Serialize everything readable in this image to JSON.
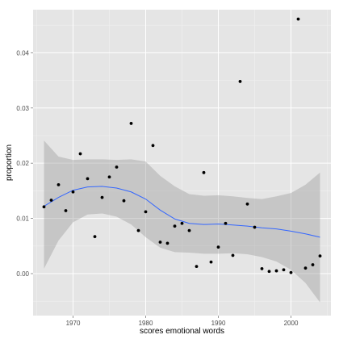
{
  "chart_data": {
    "type": "scatter",
    "xlabel": "scores emotional words",
    "ylabel": "proportion",
    "xlim": [
      1964.5,
      2005.5
    ],
    "ylim": [
      -0.0076,
      0.0478
    ],
    "x_ticks": [
      1970,
      1980,
      1990,
      2000
    ],
    "y_ticks": [
      0.0,
      0.01,
      0.02,
      0.03,
      0.04
    ],
    "x_tick_labels": [
      "1970",
      "1980",
      "1990",
      "2000"
    ],
    "y_tick_labels": [
      "0.00",
      "0.01",
      "0.02",
      "0.03",
      "0.04"
    ],
    "grid": true,
    "colors": {
      "panel_bg": "#e5e5e5",
      "grid_major": "#ffffff",
      "grid_minor": "#f2f2f2",
      "points": "#000000",
      "smooth_line": "#3366ff",
      "ribbon": "#999999"
    },
    "points": [
      {
        "x": 1966,
        "y": 0.0121
      },
      {
        "x": 1967,
        "y": 0.0133
      },
      {
        "x": 1968,
        "y": 0.0161
      },
      {
        "x": 1969,
        "y": 0.0114
      },
      {
        "x": 1970,
        "y": 0.0148
      },
      {
        "x": 1971,
        "y": 0.0217
      },
      {
        "x": 1972,
        "y": 0.0172
      },
      {
        "x": 1973,
        "y": 0.0067
      },
      {
        "x": 1974,
        "y": 0.0138
      },
      {
        "x": 1975,
        "y": 0.0175
      },
      {
        "x": 1976,
        "y": 0.0193
      },
      {
        "x": 1977,
        "y": 0.0132
      },
      {
        "x": 1978,
        "y": 0.0272
      },
      {
        "x": 1979,
        "y": 0.0078
      },
      {
        "x": 1980,
        "y": 0.0112
      },
      {
        "x": 1981,
        "y": 0.0232
      },
      {
        "x": 1982,
        "y": 0.0057
      },
      {
        "x": 1983,
        "y": 0.0055
      },
      {
        "x": 1984,
        "y": 0.0086
      },
      {
        "x": 1985,
        "y": 0.0091
      },
      {
        "x": 1986,
        "y": 0.0078
      },
      {
        "x": 1987,
        "y": 0.0013
      },
      {
        "x": 1988,
        "y": 0.0183
      },
      {
        "x": 1989,
        "y": 0.0021
      },
      {
        "x": 1990,
        "y": 0.0048
      },
      {
        "x": 1991,
        "y": 0.0091
      },
      {
        "x": 1992,
        "y": 0.0033
      },
      {
        "x": 1993,
        "y": 0.0348
      },
      {
        "x": 1994,
        "y": 0.0126
      },
      {
        "x": 1995,
        "y": 0.0084
      },
      {
        "x": 1996,
        "y": 0.0009
      },
      {
        "x": 1997,
        "y": 0.0004
      },
      {
        "x": 1998,
        "y": 0.0005
      },
      {
        "x": 1999,
        "y": 0.0007
      },
      {
        "x": 2000,
        "y": 0.0002
      },
      {
        "x": 2001,
        "y": 0.0461
      },
      {
        "x": 2002,
        "y": 0.001
      },
      {
        "x": 2003,
        "y": 0.0016
      },
      {
        "x": 2004,
        "y": 0.0032
      }
    ],
    "smooth": {
      "x": [
        1966,
        1968,
        1970,
        1972,
        1974,
        1976,
        1978,
        1980,
        1982,
        1984,
        1986,
        1988,
        1990,
        1992,
        1994,
        1996,
        1998,
        2000,
        2002,
        2004
      ],
      "y": [
        0.0122,
        0.0138,
        0.0151,
        0.0157,
        0.0158,
        0.0155,
        0.0148,
        0.0135,
        0.0115,
        0.0099,
        0.0091,
        0.0089,
        0.009,
        0.0088,
        0.0086,
        0.0083,
        0.0081,
        0.0077,
        0.0072,
        0.0066
      ],
      "lower": [
        0.0009,
        0.006,
        0.0093,
        0.0107,
        0.0109,
        0.0103,
        0.0089,
        0.0066,
        0.0047,
        0.0039,
        0.0038,
        0.0036,
        0.0036,
        0.0037,
        0.0035,
        0.003,
        0.0022,
        0.0007,
        -0.0017,
        -0.0052
      ],
      "upper": [
        0.0241,
        0.0212,
        0.0206,
        0.0207,
        0.0207,
        0.0206,
        0.0207,
        0.0203,
        0.0177,
        0.0158,
        0.0144,
        0.0141,
        0.0142,
        0.014,
        0.0137,
        0.0135,
        0.014,
        0.0146,
        0.0161,
        0.0183
      ]
    }
  }
}
